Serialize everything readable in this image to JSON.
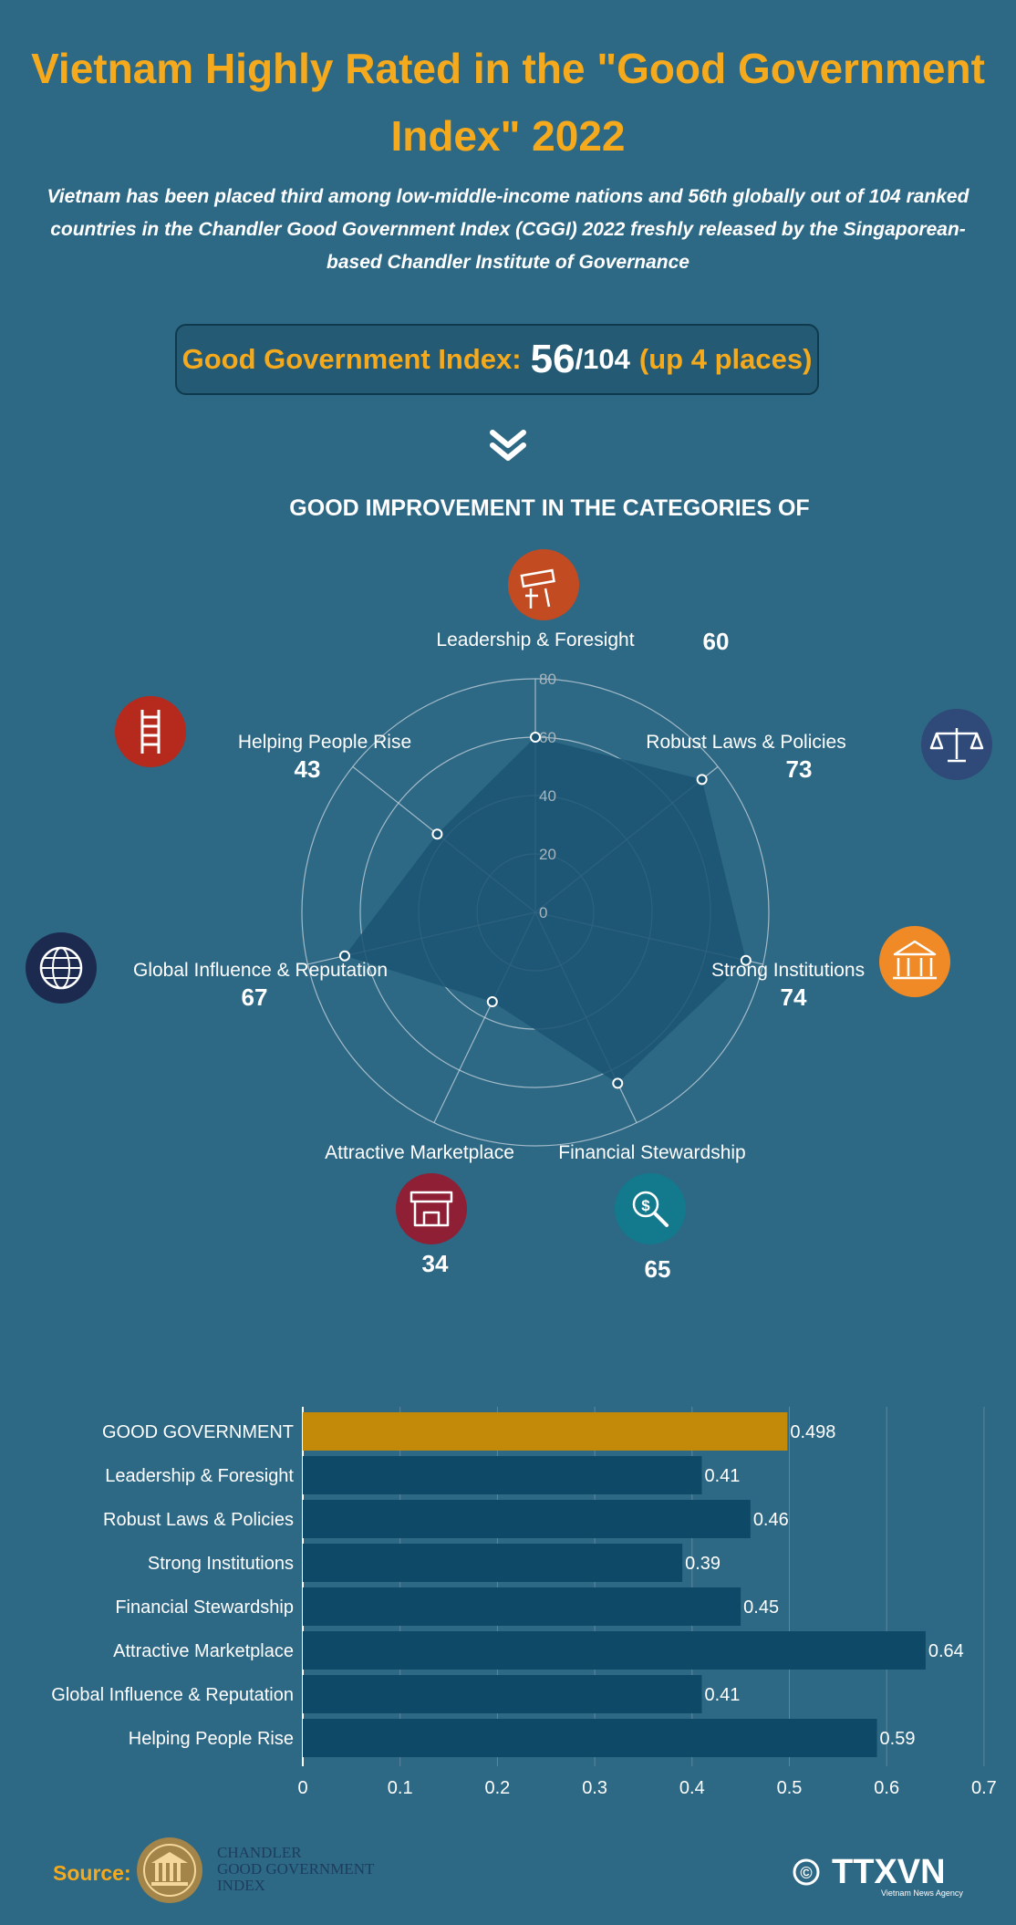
{
  "title": "Vietnam Highly Rated in the \"Good Government Index\" 2022",
  "subtitle": "Vietnam has been placed third among low-middle-income nations and 56th globally out of 104 ranked countries in the Chandler Good Government Index (CGGI) 2022 freshly released by the Singaporean-based Chandler Institute of Governance",
  "index_box": {
    "label": "Good Government Index:",
    "rank": "56",
    "total": "/104",
    "change": "(up 4 places)"
  },
  "section_heading": "GOOD IMPROVEMENT IN THE CATEGORIES OF",
  "icons": {
    "leadership": "telescope-icon",
    "laws": "scales-icon",
    "institutions": "building-icon",
    "stewardship": "money-magnifier-icon",
    "marketplace": "storefront-icon",
    "influence": "globe-icon",
    "people": "ladder-icon"
  },
  "colors": {
    "background": "#2d6885",
    "accent": "#f5a91c",
    "bar": "#0e4a68",
    "highlight_bar": "#c38a0a",
    "radar_fill": "#1b5473",
    "icon_leadership": "#c34b22",
    "icon_laws": "#2f4a78",
    "icon_institutions": "#f08a26",
    "icon_stewardship": "#127a8c",
    "icon_marketplace": "#8e1f34",
    "icon_influence": "#1c2a4f",
    "icon_people": "#b52a1c"
  },
  "chart_data": [
    {
      "type": "radar",
      "axes": [
        "Leadership & Foresight",
        "Robust Laws & Policies",
        "Strong Institutions",
        "Financial Stewardship",
        "Attractive Marketplace",
        "Global Influence & Reputation",
        "Helping People Rise"
      ],
      "values": [
        60,
        73,
        74,
        65,
        34,
        67,
        43
      ],
      "value_labels": [
        "60",
        "73",
        "74",
        "65",
        "34",
        "67",
        "43"
      ],
      "rlim": [
        0,
        80
      ],
      "ticks": [
        0,
        20,
        40,
        60,
        80
      ],
      "tick_labels": [
        "0",
        "20",
        "40",
        "60",
        "80"
      ]
    },
    {
      "type": "bar",
      "orientation": "horizontal",
      "categories": [
        "GOOD GOVERNMENT",
        "Leadership & Foresight",
        "Robust Laws & Policies",
        "Strong Institutions",
        "Financial Stewardship",
        "Attractive Marketplace",
        "Global Influence & Reputation",
        "Helping People Rise"
      ],
      "values": [
        0.498,
        0.41,
        0.46,
        0.39,
        0.45,
        0.64,
        0.41,
        0.59
      ],
      "value_labels": [
        "0.498",
        "0.41",
        "0.46",
        "0.39",
        "0.45",
        "0.64",
        "0.41",
        "0.59"
      ],
      "highlight_index": 0,
      "xlim": [
        0,
        0.7
      ],
      "xticks": [
        0,
        0.1,
        0.2,
        0.3,
        0.4,
        0.5,
        0.6,
        0.7
      ],
      "xtick_labels": [
        "0",
        "0.1",
        "0.2",
        "0.3",
        "0.4",
        "0.5",
        "0.6",
        "0.7"
      ],
      "grid": true
    }
  ],
  "footer": {
    "source_label": "Source:",
    "source_org_lines": [
      "CHANDLER",
      "GOOD GOVERNMENT",
      "INDEX"
    ],
    "copyright_symbol": "©",
    "agency_logo": "TTXVN",
    "agency_sub": "Vietnam News Agency"
  }
}
